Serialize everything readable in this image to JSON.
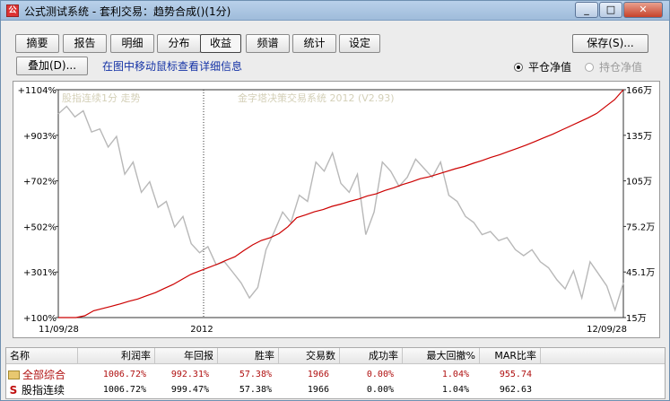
{
  "window": {
    "title": "公式测试系统 - 套利交易：趋势合成()(1分)",
    "min_label": "0",
    "max_label": "1",
    "close_label": "r"
  },
  "tabs": [
    {
      "label": "摘要"
    },
    {
      "label": "报告"
    },
    {
      "label": "明细"
    },
    {
      "label": "分布"
    },
    {
      "label": "收益",
      "active": true
    },
    {
      "label": "频谱"
    },
    {
      "label": "统计"
    },
    {
      "label": "设定"
    }
  ],
  "toolbar": {
    "save_label": "保存(S)...",
    "overlay_label": "叠加(D)...",
    "hint": "在图中移动鼠标查看详细信息",
    "radio_pingcang": "平仓净值",
    "radio_chicang": "持仓净值",
    "selected_radio": "平仓净值"
  },
  "chart_data": {
    "type": "line",
    "watermark_left": "股指连续1分 走势",
    "watermark_center": "金字塔决策交易系统 2012 (V2.93)",
    "left_axis_ticks": [
      "+1104%",
      "+903%",
      "+702%",
      "+502%",
      "+301%",
      "+100%"
    ],
    "left_axis_values": [
      1104,
      903,
      702,
      502,
      301,
      100
    ],
    "right_axis_ticks": [
      "166万",
      "135万",
      "105万",
      "75.2万",
      "45.1万",
      "15万"
    ],
    "x_ticks": [
      "11/09/28",
      "2012",
      "12/09/28"
    ],
    "colors": {
      "equity": "#cc0000",
      "price": "#b8b8b8",
      "grid": "#333333"
    },
    "series": [
      {
        "role": "equity",
        "y_axis": "left",
        "values": [
          100,
          100,
          100,
          108,
          130,
          140,
          150,
          160,
          172,
          182,
          196,
          210,
          228,
          246,
          268,
          290,
          305,
          320,
          335,
          352,
          368,
          395,
          420,
          440,
          452,
          470,
          500,
          540,
          552,
          566,
          576,
          590,
          600,
          612,
          622,
          636,
          645,
          660,
          672,
          686,
          698,
          712,
          720,
          732,
          744,
          756,
          766,
          780,
          792,
          806,
          818,
          832,
          846,
          860,
          876,
          892,
          908,
          926,
          944,
          962,
          980,
          1000,
          1030,
          1060,
          1104
        ]
      },
      {
        "role": "price",
        "y_axis": "right",
        "values": [
          150,
          155,
          148,
          152,
          138,
          140,
          128,
          135,
          110,
          118,
          98,
          105,
          88,
          92,
          75,
          82,
          64,
          58,
          62,
          50,
          52,
          45,
          38,
          28,
          35,
          60,
          72,
          85,
          78,
          96,
          92,
          118,
          112,
          124,
          104,
          98,
          110,
          70,
          85,
          118,
          112,
          102,
          108,
          120,
          114,
          108,
          118,
          96,
          92,
          82,
          78,
          70,
          72,
          66,
          68,
          60,
          56,
          60,
          52,
          48,
          40,
          34,
          46,
          28,
          52,
          44,
          36,
          20,
          38
        ]
      }
    ]
  },
  "table": {
    "headers": [
      "名称",
      "利润率",
      "年回报",
      "胜率",
      "交易数",
      "成功率",
      "最大回撤%",
      "MAR比率"
    ],
    "rows": [
      {
        "name": "全部综合",
        "icon": "folder-icon",
        "cells": [
          "1006.72%",
          "992.31%",
          "57.38%",
          "1966",
          "0.00%",
          "1.04%",
          "955.74"
        ]
      },
      {
        "name": "股指连续",
        "icon": "S",
        "cells": [
          "1006.72%",
          "999.47%",
          "57.38%",
          "1966",
          "0.00%",
          "1.04%",
          "962.63"
        ]
      }
    ]
  }
}
